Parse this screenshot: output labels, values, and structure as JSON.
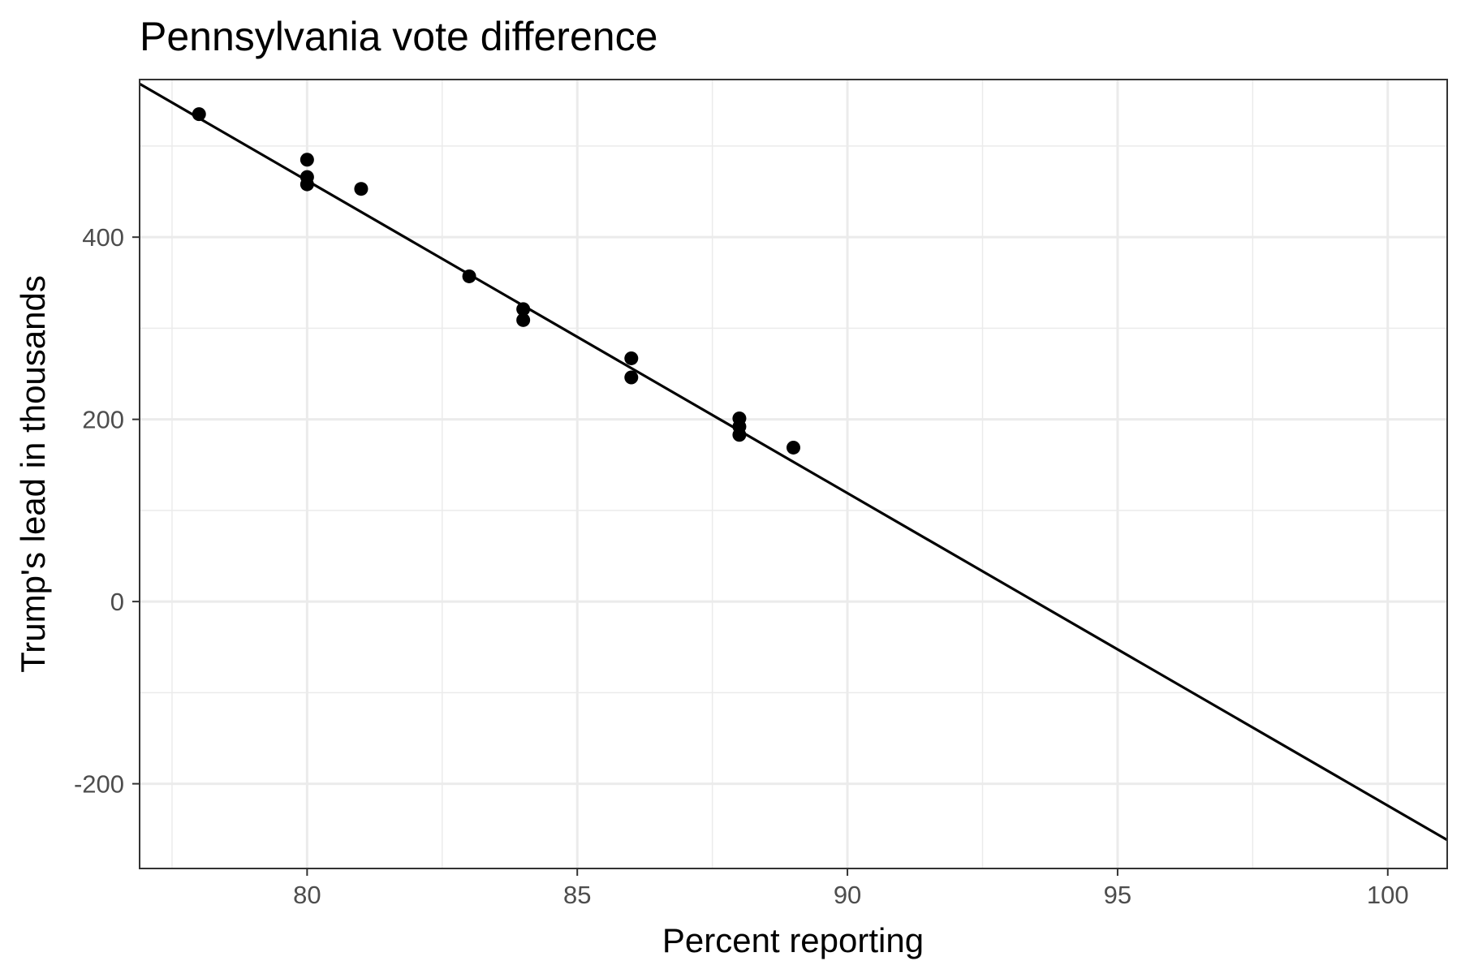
{
  "chart_data": {
    "type": "scatter",
    "title": "Pennsylvania vote difference",
    "xlabel": "Percent reporting",
    "ylabel": "Trump's lead in thousands",
    "xlim": [
      76.9,
      101.1
    ],
    "ylim": [
      -293,
      573
    ],
    "x_ticks": [
      80,
      85,
      90,
      95,
      100
    ],
    "x_tick_labels": [
      "80",
      "85",
      "90",
      "95",
      "100"
    ],
    "x_minor_ticks": [
      77.5,
      82.5,
      87.5,
      92.5,
      97.5
    ],
    "y_ticks": [
      -200,
      0,
      200,
      400
    ],
    "y_tick_labels": [
      "-200",
      "0",
      "200",
      "400"
    ],
    "y_minor_ticks": [
      -100,
      100,
      300,
      500
    ],
    "grid": true,
    "points": [
      {
        "x": 78,
        "y": 535
      },
      {
        "x": 80,
        "y": 485
      },
      {
        "x": 80,
        "y": 466
      },
      {
        "x": 80,
        "y": 458
      },
      {
        "x": 81,
        "y": 453
      },
      {
        "x": 83,
        "y": 357
      },
      {
        "x": 84,
        "y": 321
      },
      {
        "x": 84,
        "y": 309
      },
      {
        "x": 86,
        "y": 267
      },
      {
        "x": 86,
        "y": 246
      },
      {
        "x": 88,
        "y": 201
      },
      {
        "x": 88,
        "y": 192
      },
      {
        "x": 88,
        "y": 183
      },
      {
        "x": 89,
        "y": 169
      }
    ],
    "fit_line": {
      "slope": -34.3,
      "intercept": 3206
    },
    "point_color": "#000000",
    "line_color": "#000000",
    "grid_color": "#ebebeb",
    "panel_border_color": "#333333"
  }
}
